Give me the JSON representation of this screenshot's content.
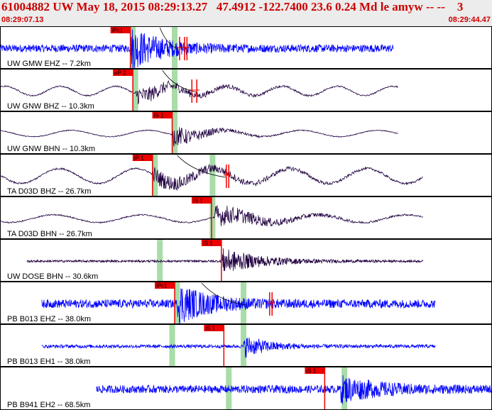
{
  "header": {
    "title": "61004882 UW May 18, 2015 08:29:13.27   47.4912 -122.7400 23.6 0.24 Md le amyw -- --    3",
    "start_time": "08:29:07.13",
    "end_time": "08:29:44.47"
  },
  "colors": {
    "header_text": "#cc0000",
    "header_bg": "#ececec",
    "trace_highfreq": "#0000ff",
    "trace_broadband": "#200040",
    "pick_marker": "#ee0000",
    "window_band": "#a8dca8"
  },
  "channels": [
    {
      "label": "UW GMW EHZ -- 7.2km",
      "trace_color": "blue",
      "kind": "noise",
      "time_start": 0.0,
      "time_end": 0.8,
      "amp_noise": 0.18,
      "amp_peak": 0.95,
      "onset": 0.265,
      "decay": 0.06,
      "wave": null,
      "wave_amp": 0,
      "wave_cycles": 0,
      "pick_label": "iPc1",
      "pick_time": 0.265,
      "band_time": 0.27,
      "extra_band_time": 0.355,
      "has_arc": true,
      "arc_from": 0.325,
      "arc_to": 0.365,
      "ticks": [
        0.365,
        0.375,
        0.38
      ]
    },
    {
      "label": "UW GNW BHZ -- 10.3km",
      "trace_color": "purple",
      "kind": "wave",
      "time_start": 0.0,
      "time_end": 0.81,
      "amp_noise": 0.03,
      "amp_peak": 0.45,
      "onset": 0.275,
      "decay": 0.1,
      "wave": "sine",
      "wave_amp": 0.22,
      "wave_cycles": 7.2,
      "pick_label": "eP 2",
      "pick_time": 0.27,
      "band_time": 0.275,
      "extra_band_time": 0.355,
      "has_arc": true,
      "arc_from": 0.33,
      "arc_to": 0.4,
      "ticks": [
        0.39,
        0.4
      ]
    },
    {
      "label": "UW GNW BHN -- 10.3km",
      "trace_color": "purple",
      "kind": "wave",
      "time_start": 0.0,
      "time_end": 0.81,
      "amp_noise": 0.02,
      "amp_peak": 0.55,
      "onset": 0.35,
      "decay": 0.06,
      "wave": "sine",
      "wave_amp": 0.15,
      "wave_cycles": 5.2,
      "pick_label": "iS 1",
      "pick_time": 0.35,
      "band_time": 0.355,
      "extra_band_time": null,
      "has_arc": false,
      "arc_from": 0,
      "arc_to": 0,
      "ticks": []
    },
    {
      "label": "TA D03D BHZ -- 26.7km",
      "trace_color": "purple",
      "kind": "wave",
      "time_start": 0.0,
      "time_end": 0.86,
      "amp_noise": 0.04,
      "amp_peak": 0.4,
      "onset": 0.31,
      "decay": 0.14,
      "wave": "sine",
      "wave_amp": 0.35,
      "wave_cycles": 5.5,
      "pick_label": "iP 1",
      "pick_time": 0.31,
      "band_time": 0.315,
      "extra_band_time": 0.432,
      "has_arc": true,
      "arc_from": 0.36,
      "arc_to": 0.46,
      "ticks": [
        0.46,
        0.465
      ]
    },
    {
      "label": "TA D03D BHN -- 26.7km",
      "trace_color": "purple",
      "kind": "wave",
      "time_start": 0.0,
      "time_end": 0.86,
      "amp_noise": 0.03,
      "amp_peak": 0.55,
      "onset": 0.435,
      "decay": 0.1,
      "wave": "sine",
      "wave_amp": 0.18,
      "wave_cycles": 4.8,
      "pick_label": "iS 1",
      "pick_time": 0.43,
      "band_time": 0.432,
      "extra_band_time": null,
      "has_arc": false,
      "arc_from": 0,
      "arc_to": 0,
      "ticks": []
    },
    {
      "label": "UW DOSE BHN -- 30.6km",
      "trace_color": "purple",
      "kind": "noise",
      "time_start": 0.055,
      "time_end": 0.86,
      "amp_noise": 0.05,
      "amp_peak": 0.6,
      "onset": 0.45,
      "decay": 0.08,
      "wave": null,
      "wave_amp": 0,
      "wave_cycles": 0,
      "pick_label": "iS 1",
      "pick_time": 0.45,
      "band_time": 0.325,
      "extra_band_time": null,
      "has_arc": false,
      "arc_from": 0,
      "arc_to": 0,
      "ticks": []
    },
    {
      "label": "PB B013 EHZ -- 38.0km",
      "trace_color": "blue",
      "kind": "noise",
      "time_start": 0.085,
      "time_end": 0.885,
      "amp_noise": 0.2,
      "amp_peak": 0.9,
      "onset": 0.36,
      "decay": 0.06,
      "wave": null,
      "wave_amp": 0,
      "wave_cycles": 0,
      "pick_label": "iPc1",
      "pick_time": 0.355,
      "band_time": 0.36,
      "extra_band_time": 0.495,
      "has_arc": true,
      "arc_from": 0.41,
      "arc_to": 0.5,
      "ticks": [
        0.548,
        0.553
      ]
    },
    {
      "label": "PB B013 EH1 -- 38.0km",
      "trace_color": "blue",
      "kind": "noise",
      "time_start": 0.085,
      "time_end": 0.885,
      "amp_noise": 0.08,
      "amp_peak": 0.5,
      "onset": 0.495,
      "decay": 0.05,
      "wave": null,
      "wave_amp": 0,
      "wave_cycles": 0,
      "pick_label": "iS 1",
      "pick_time": 0.455,
      "band_time": 0.35,
      "extra_band_time": 0.495,
      "has_arc": false,
      "arc_from": 0,
      "arc_to": 0,
      "ticks": []
    },
    {
      "label": "PB B941 EH2 -- 68.5km",
      "trace_color": "blue",
      "kind": "noise",
      "time_start": 0.195,
      "time_end": 1.0,
      "amp_noise": 0.18,
      "amp_peak": 0.55,
      "onset": 0.69,
      "decay": 0.08,
      "wave": null,
      "wave_amp": 0,
      "wave_cycles": 0,
      "pick_label": "iS 1",
      "pick_time": 0.66,
      "band_time": 0.465,
      "extra_band_time": 0.7,
      "has_arc": false,
      "arc_from": 0,
      "arc_to": 0,
      "ticks": []
    }
  ]
}
